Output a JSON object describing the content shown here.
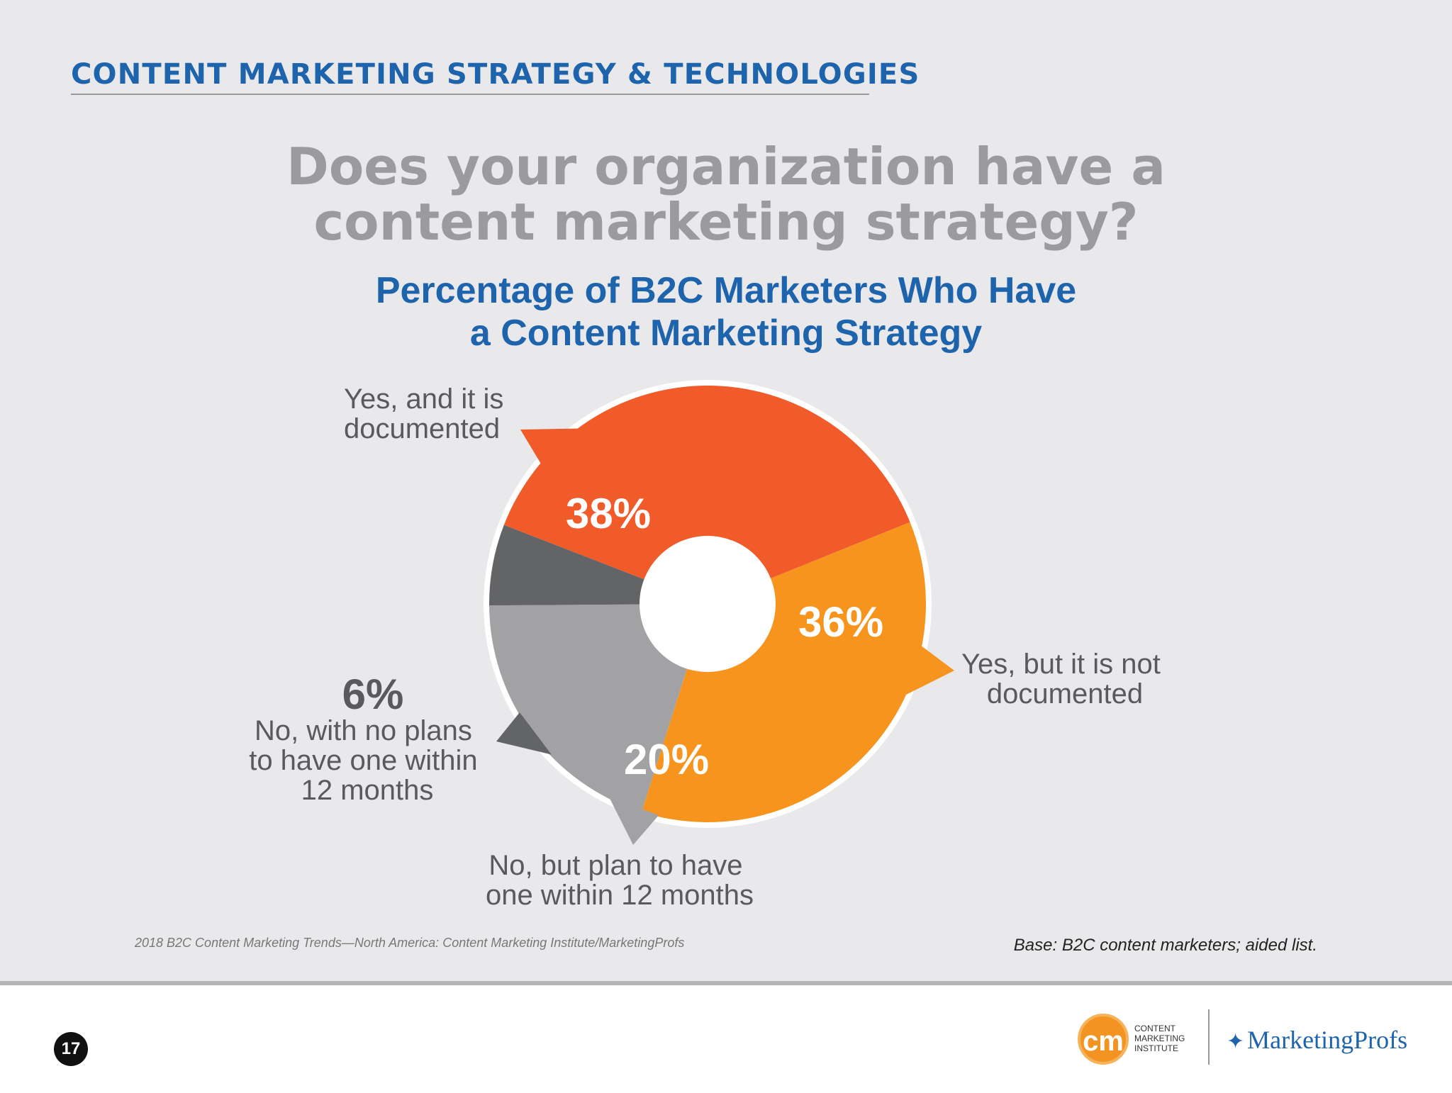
{
  "header": {
    "section_title": "CONTENT MARKETING STRATEGY & TECHNOLOGIES"
  },
  "question": {
    "line1": "Does your organization have a",
    "line2": "content marketing strategy?"
  },
  "chart_data": {
    "type": "pie",
    "title": "Percentage of B2C Marketers Who Have a Content Marketing Strategy",
    "title_lines": [
      "Percentage of B2C Marketers Who Have",
      "a Content Marketing Strategy"
    ],
    "unit": "%",
    "slices": [
      {
        "label_lines": [
          "Yes, and it is",
          "documented"
        ],
        "value": 38,
        "display": "38%",
        "color": "#f15a29"
      },
      {
        "label_lines": [
          "Yes, but it is not",
          "documented"
        ],
        "value": 36,
        "display": "36%",
        "color": "#f7941d"
      },
      {
        "label_lines": [
          "No, but plan to have",
          "one within 12 months"
        ],
        "value": 20,
        "display": "20%",
        "color": "#a2a2a5"
      },
      {
        "label_lines": [
          "No, with no plans",
          "to have one within",
          "12 months"
        ],
        "value": 6,
        "display": "6%",
        "color": "#636466"
      }
    ]
  },
  "footnotes": {
    "source": "2018 B2C Content Marketing Trends—North America: Content Marketing Institute/MarketingProfs",
    "base": "Base: B2C content marketers; aided list."
  },
  "footer": {
    "page_number": "17",
    "cmi_logo_mark": "cm",
    "cmi_logo_lines": [
      "CONTENT",
      "MARKETING",
      "INSTITUTE"
    ],
    "mp_logo_text": "MarketingProfs",
    "mp_icon": "bird-icon"
  }
}
